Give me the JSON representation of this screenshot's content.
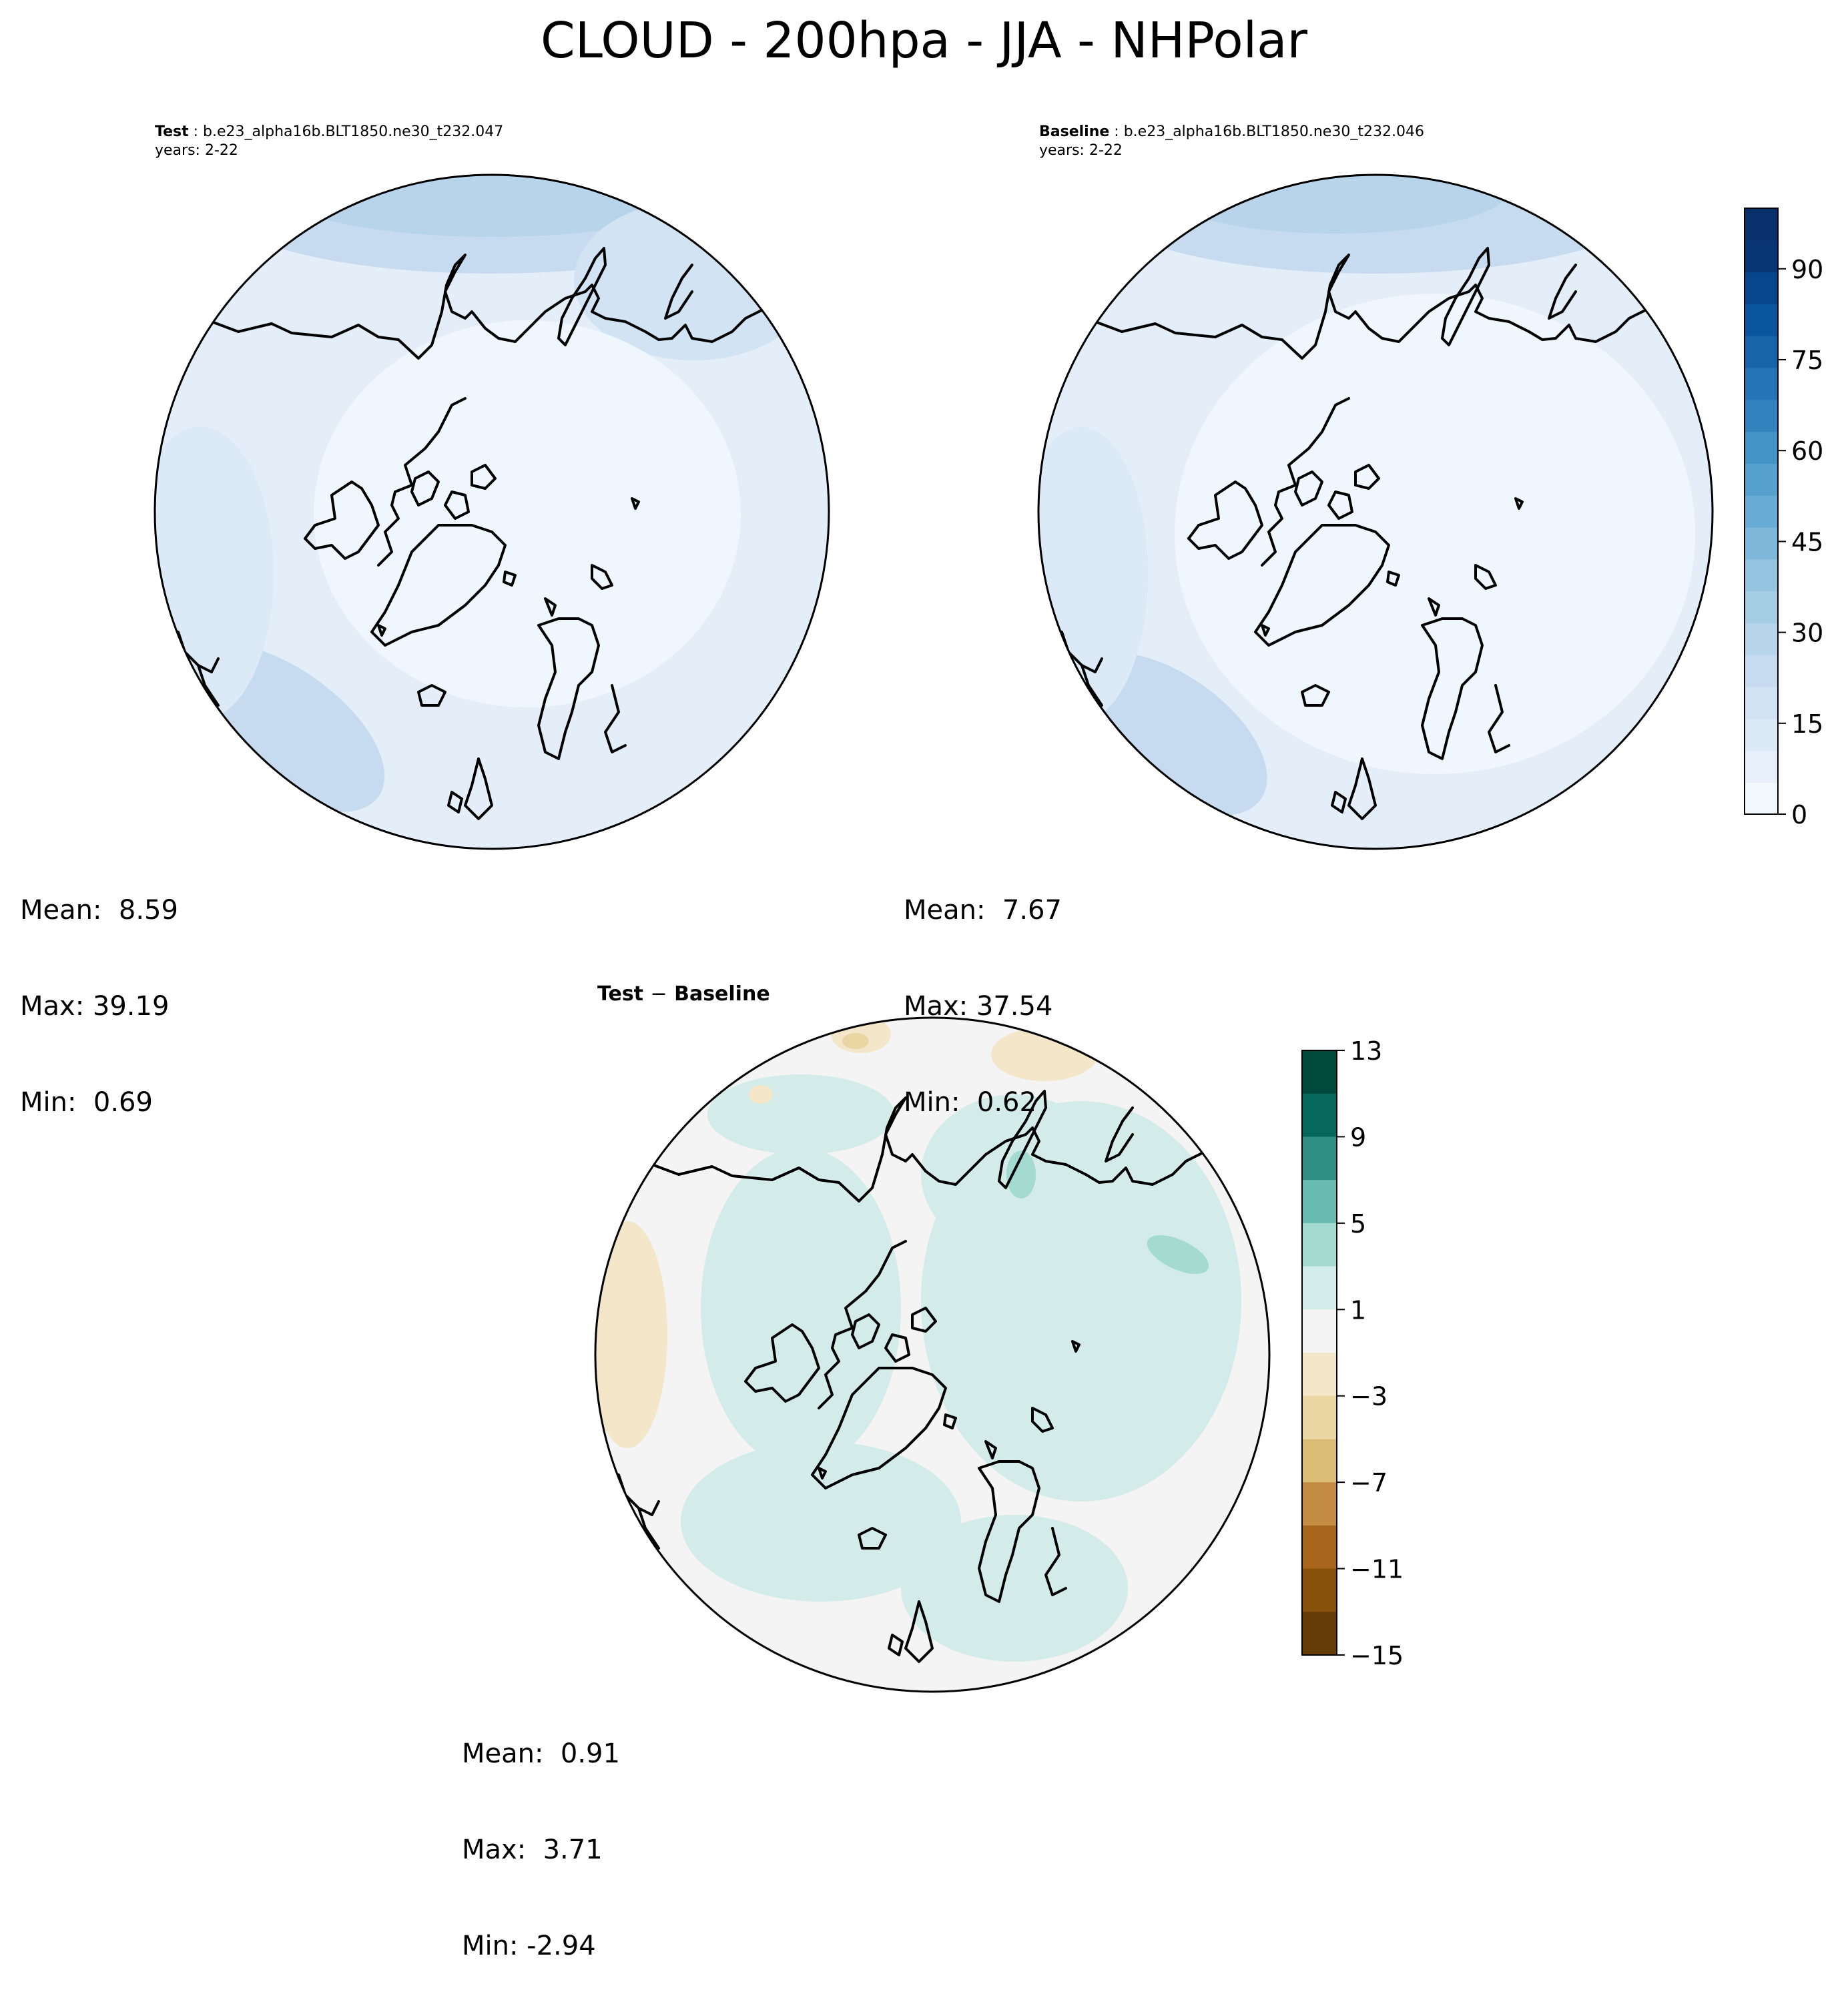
{
  "figure": {
    "title": "CLOUD - 200hpa - JJA - NHPolar"
  },
  "panels": [
    {
      "id": "test",
      "label": "Test",
      "case": "b.e23_alpha16b.BLT1850.ne30_t232.047",
      "years": "years: 2-22",
      "stats": {
        "mean": "Mean:  8.59",
        "max": "Max: 39.19",
        "min": "Min:  0.69"
      }
    },
    {
      "id": "baseline",
      "label": "Baseline",
      "case": "b.e23_alpha16b.BLT1850.ne30_t232.046",
      "years": "years: 2-22",
      "stats": {
        "mean": "Mean:  7.67",
        "max": "Max: 37.54",
        "min": "Min:  0.62"
      }
    },
    {
      "id": "diff",
      "title_a": "Test",
      "title_sep": "−",
      "title_b": "Baseline",
      "stats": {
        "mean": "Mean:  0.91",
        "max": "Max:  3.71",
        "min": "Min: -2.94"
      }
    }
  ],
  "colorbars": {
    "main": {
      "colormap": "Blues",
      "ticks": [
        "0",
        "15",
        "30",
        "45",
        "60",
        "75",
        "90"
      ],
      "colors": [
        "#f2f7fd",
        "#e7f0fa",
        "#dce9f6",
        "#d2e3f3",
        "#c6dbef",
        "#b7d4ea",
        "#a5cde3",
        "#94c4df",
        "#7db8da",
        "#68acd5",
        "#56a0ce",
        "#4493c6",
        "#3282be",
        "#2474b7",
        "#1764ab",
        "#0b559f",
        "#08468b",
        "#083573",
        "#08306b"
      ]
    },
    "diff": {
      "colormap": "BrBG",
      "ticks": [
        "13",
        "9",
        "5",
        "1",
        "−3",
        "−7",
        "−11",
        "−15"
      ],
      "colors": [
        "#00493d",
        "#07685c",
        "#2f8f84",
        "#69bbb0",
        "#a3dbd1",
        "#d3ece9",
        "#f3f4f3",
        "#f4e6c8",
        "#ead6a3",
        "#dcbd78",
        "#c48b42",
        "#a8661d",
        "#87500b",
        "#653b06"
      ]
    }
  },
  "map_fill": {
    "test_base": "#e4eef9",
    "baseline_base": "#e4eef9",
    "core": "#f0f6fd",
    "diff_base": "#f3f4f3",
    "diff_green": "#d3ece9",
    "diff_green2": "#a3dbd1",
    "diff_tan": "#f4e6c8",
    "diff_tan2": "#ead6a3"
  }
}
